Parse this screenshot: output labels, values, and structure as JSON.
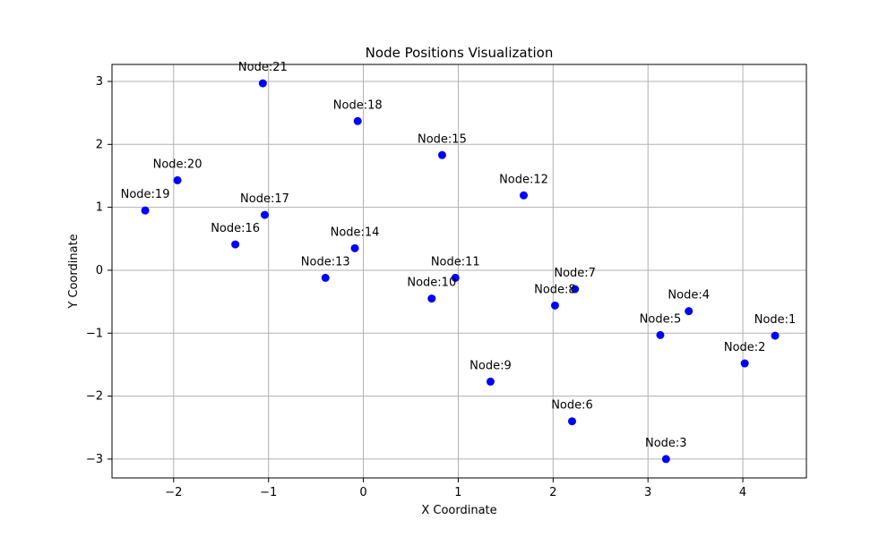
{
  "chart_data": {
    "type": "scatter",
    "title": "Node Positions Visualization",
    "xlabel": "X Coordinate",
    "ylabel": "Y Coordinate",
    "xlim": [
      -2.65,
      4.67
    ],
    "ylim": [
      -3.3,
      3.27
    ],
    "grid": true,
    "marker_color": "#0000ff",
    "x_ticks": [
      -2,
      -1,
      0,
      1,
      2,
      3,
      4
    ],
    "x_tick_labels": [
      "−2",
      "−1",
      "0",
      "1",
      "2",
      "3",
      "4"
    ],
    "y_ticks": [
      -3,
      -2,
      -1,
      0,
      1,
      2,
      3
    ],
    "y_tick_labels": [
      "−3",
      "−2",
      "−1",
      "0",
      "1",
      "2",
      "3"
    ],
    "points": [
      {
        "label": "Node:1",
        "x": 4.34,
        "y": -1.04
      },
      {
        "label": "Node:2",
        "x": 4.02,
        "y": -1.48
      },
      {
        "label": "Node:3",
        "x": 3.19,
        "y": -3.0
      },
      {
        "label": "Node:4",
        "x": 3.43,
        "y": -0.65
      },
      {
        "label": "Node:5",
        "x": 3.13,
        "y": -1.03
      },
      {
        "label": "Node:6",
        "x": 2.2,
        "y": -2.4
      },
      {
        "label": "Node:7",
        "x": 2.23,
        "y": -0.3
      },
      {
        "label": "Node:8",
        "x": 2.02,
        "y": -0.56
      },
      {
        "label": "Node:9",
        "x": 1.34,
        "y": -1.77
      },
      {
        "label": "Node:10",
        "x": 0.72,
        "y": -0.45
      },
      {
        "label": "Node:11",
        "x": 0.97,
        "y": -0.12
      },
      {
        "label": "Node:12",
        "x": 1.69,
        "y": 1.19
      },
      {
        "label": "Node:13",
        "x": -0.4,
        "y": -0.12
      },
      {
        "label": "Node:14",
        "x": -0.09,
        "y": 0.35
      },
      {
        "label": "Node:15",
        "x": 0.83,
        "y": 1.83
      },
      {
        "label": "Node:16",
        "x": -1.35,
        "y": 0.41
      },
      {
        "label": "Node:17",
        "x": -1.04,
        "y": 0.88
      },
      {
        "label": "Node:18",
        "x": -0.06,
        "y": 2.37
      },
      {
        "label": "Node:19",
        "x": -2.3,
        "y": 0.95
      },
      {
        "label": "Node:20",
        "x": -1.96,
        "y": 1.43
      },
      {
        "label": "Node:21",
        "x": -1.06,
        "y": 2.97
      }
    ]
  }
}
